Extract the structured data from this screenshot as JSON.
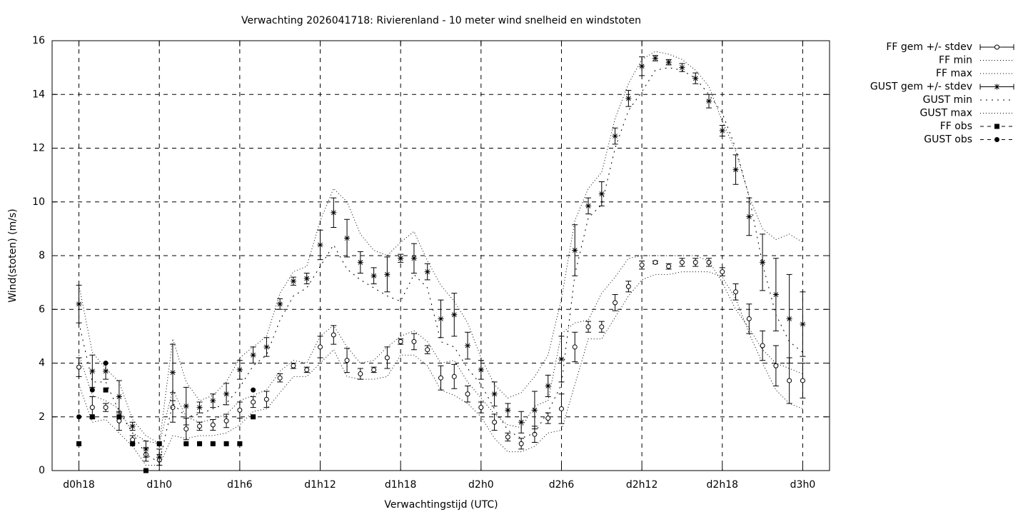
{
  "chart_data": {
    "type": "errorbar-line",
    "title": "Verwachting 2026041718: Rivierenland - 10 meter wind snelheid en windstoten",
    "x_label": "Verwachtingstijd (UTC)",
    "y_label": "Wind(stoten) (m/s)",
    "xlim": [
      16,
      74
    ],
    "ylim": [
      0,
      16
    ],
    "xticks": [
      {
        "value": 18,
        "label": "d0h18"
      },
      {
        "value": 24,
        "label": "d1h0"
      },
      {
        "value": 30,
        "label": "d1h6"
      },
      {
        "value": 36,
        "label": "d1h12"
      },
      {
        "value": 42,
        "label": "d1h18"
      },
      {
        "value": 48,
        "label": "d2h0"
      },
      {
        "value": 54,
        "label": "d2h6"
      },
      {
        "value": 60,
        "label": "d2h12"
      },
      {
        "value": 66,
        "label": "d2h18"
      },
      {
        "value": 72,
        "label": "d3h0"
      }
    ],
    "yticks": [
      0,
      2,
      4,
      6,
      8,
      10,
      12,
      14,
      16
    ],
    "grid": true,
    "legend": "outside-right",
    "x": [
      18,
      19,
      20,
      21,
      22,
      23,
      24,
      25,
      26,
      27,
      28,
      29,
      30,
      31,
      32,
      33,
      34,
      35,
      36,
      37,
      38,
      39,
      40,
      41,
      42,
      43,
      44,
      45,
      46,
      47,
      48,
      49,
      50,
      51,
      52,
      53,
      54,
      55,
      56,
      57,
      58,
      59,
      60,
      61,
      62,
      63,
      64,
      65,
      66,
      67,
      68,
      69,
      70,
      71,
      72
    ],
    "series": [
      {
        "name": "FF gem +/- stdev",
        "color": "#000000",
        "marker": "open-circle",
        "line": "errorbar",
        "values": [
          3.85,
          2.35,
          2.35,
          1.85,
          1.15,
          0.6,
          0.4,
          2.35,
          1.55,
          1.65,
          1.7,
          1.85,
          2.25,
          2.55,
          2.65,
          3.45,
          3.9,
          3.75,
          4.6,
          5.05,
          4.1,
          3.6,
          3.75,
          4.2,
          4.8,
          4.8,
          4.5,
          3.45,
          3.5,
          2.85,
          2.35,
          1.8,
          1.25,
          1.0,
          1.35,
          1.95,
          2.3,
          4.6,
          5.35,
          5.35,
          6.25,
          6.85,
          7.65,
          7.75,
          7.6,
          7.75,
          7.75,
          7.75,
          7.4,
          6.65,
          5.65,
          4.65,
          3.9,
          3.35,
          3.35
        ],
        "errors": [
          0.35,
          0.4,
          0.15,
          0.35,
          0.15,
          0.25,
          0.2,
          0.55,
          0.4,
          0.15,
          0.2,
          0.25,
          0.3,
          0.2,
          0.3,
          0.15,
          0.1,
          0.1,
          0.4,
          0.35,
          0.45,
          0.2,
          0.1,
          0.4,
          0.1,
          0.3,
          0.15,
          0.45,
          0.45,
          0.3,
          0.2,
          0.3,
          0.15,
          0.2,
          0.3,
          0.2,
          0.55,
          0.55,
          0.2,
          0.2,
          0.3,
          0.2,
          0.15,
          0.05,
          0.1,
          0.15,
          0.15,
          0.15,
          0.15,
          0.3,
          0.55,
          0.55,
          0.75,
          0.85,
          0.65
        ]
      },
      {
        "name": "FF min",
        "color": "#000000",
        "line": "dotted",
        "values": [
          3.2,
          1.8,
          1.9,
          1.4,
          0.9,
          0.2,
          0.2,
          1.3,
          1.2,
          1.3,
          1.3,
          1.4,
          1.7,
          2.2,
          2.3,
          2.9,
          3.5,
          3.5,
          4.0,
          4.5,
          3.5,
          3.4,
          3.4,
          3.5,
          4.3,
          4.3,
          3.9,
          3.0,
          2.8,
          2.5,
          2.0,
          1.2,
          0.7,
          0.7,
          0.9,
          1.4,
          1.5,
          3.2,
          4.9,
          4.9,
          5.7,
          6.5,
          7.1,
          7.3,
          7.3,
          7.4,
          7.4,
          7.4,
          7.2,
          6.4,
          5.1,
          4.0,
          3.0,
          2.5,
          2.3
        ]
      },
      {
        "name": "FF max",
        "color": "#000000",
        "line": "dotted",
        "values": [
          4.3,
          2.8,
          2.6,
          2.3,
          1.4,
          1.1,
          1.0,
          3.0,
          2.0,
          1.8,
          1.9,
          2.1,
          2.6,
          2.8,
          3.0,
          3.7,
          4.1,
          4.0,
          5.0,
          5.4,
          4.6,
          4.0,
          4.1,
          4.6,
          5.0,
          5.2,
          4.8,
          4.0,
          4.1,
          3.3,
          2.7,
          2.1,
          1.7,
          1.6,
          2.4,
          2.6,
          5.1,
          5.5,
          5.6,
          6.6,
          7.2,
          7.9,
          8.0,
          8.0,
          8.0,
          8.0,
          8.0,
          7.8,
          7.0,
          6.0,
          5.3,
          4.5,
          4.0,
          3.8,
          3.6
        ]
      },
      {
        "name": "GUST gem +/- stdev",
        "color": "#000000",
        "marker": "star",
        "line": "errorbar",
        "values": [
          6.2,
          3.7,
          3.7,
          2.75,
          1.65,
          0.8,
          0.5,
          3.65,
          2.4,
          2.35,
          2.6,
          2.85,
          3.75,
          4.3,
          4.6,
          6.2,
          7.05,
          7.15,
          8.4,
          9.6,
          8.65,
          7.75,
          7.25,
          7.3,
          7.9,
          7.9,
          7.4,
          5.65,
          5.8,
          4.65,
          3.75,
          2.85,
          2.25,
          1.8,
          2.25,
          3.15,
          4.15,
          8.2,
          9.85,
          10.3,
          12.45,
          13.85,
          15.05,
          15.35,
          15.2,
          15.0,
          14.6,
          13.75,
          12.65,
          11.2,
          9.45,
          7.75,
          6.55,
          5.65,
          5.45
        ],
        "errors": [
          0.7,
          0.6,
          0.3,
          0.6,
          0.15,
          0.3,
          0.3,
          1.05,
          0.7,
          0.2,
          0.25,
          0.4,
          0.35,
          0.3,
          0.35,
          0.2,
          0.15,
          0.2,
          0.55,
          0.55,
          0.7,
          0.4,
          0.3,
          0.65,
          0.15,
          0.55,
          0.3,
          0.7,
          0.8,
          0.5,
          0.35,
          0.45,
          0.25,
          0.4,
          0.7,
          0.4,
          0.85,
          0.95,
          0.3,
          0.45,
          0.3,
          0.3,
          0.35,
          0.1,
          0.1,
          0.15,
          0.2,
          0.25,
          0.2,
          0.55,
          0.7,
          1.05,
          1.35,
          1.65,
          1.2
        ]
      },
      {
        "name": "GUST min",
        "color": "#000000",
        "line": "dotted-coarse",
        "values": [
          5.5,
          3.3,
          3.3,
          2.2,
          1.4,
          0.6,
          0.3,
          2.5,
          2.0,
          2.1,
          2.3,
          2.5,
          3.1,
          3.9,
          4.3,
          5.6,
          6.5,
          6.8,
          7.6,
          8.4,
          7.5,
          7.1,
          6.8,
          6.5,
          6.3,
          7.3,
          6.8,
          4.8,
          4.6,
          3.8,
          3.2,
          2.3,
          1.5,
          1.2,
          1.4,
          2.2,
          3.2,
          7.3,
          9.4,
          9.9,
          12.0,
          13.4,
          14.1,
          14.9,
          15.0,
          14.9,
          14.6,
          14.0,
          13.3,
          12.0,
          10.2,
          7.7,
          5.8,
          4.8,
          4.4
        ]
      },
      {
        "name": "GUST max",
        "color": "#000000",
        "line": "dotted",
        "values": [
          6.9,
          4.4,
          3.8,
          3.3,
          1.9,
          1.3,
          1.0,
          4.9,
          3.3,
          2.6,
          2.8,
          3.3,
          4.2,
          4.6,
          5.0,
          6.6,
          7.4,
          7.6,
          9.3,
          10.5,
          10.0,
          8.8,
          8.2,
          8.0,
          8.5,
          8.9,
          7.8,
          6.9,
          6.3,
          5.5,
          4.2,
          3.2,
          2.7,
          2.9,
          3.5,
          4.3,
          6.4,
          9.3,
          10.5,
          11.1,
          13.1,
          14.4,
          15.3,
          15.6,
          15.5,
          15.3,
          14.9,
          14.3,
          13.0,
          11.9,
          10.2,
          9.0,
          8.6,
          8.8,
          8.5
        ]
      },
      {
        "name": "FF obs",
        "color": "#000000",
        "marker": "filled-square",
        "line": "points",
        "x": [
          18,
          19,
          20,
          21,
          22,
          23,
          24,
          25,
          26,
          27,
          28,
          29,
          30,
          31
        ],
        "values": [
          1,
          2,
          3,
          2,
          1,
          0,
          1,
          null,
          1,
          1,
          1,
          1,
          1,
          2
        ]
      },
      {
        "name": "GUST obs",
        "color": "#000000",
        "marker": "filled-circle",
        "line": "points",
        "x": [
          18,
          19,
          20,
          21,
          22,
          23,
          24,
          25,
          26,
          27,
          28,
          29,
          30,
          31
        ],
        "values": [
          2,
          3,
          4,
          2,
          1,
          null,
          1,
          null,
          1,
          1,
          1,
          1,
          1,
          3
        ]
      }
    ]
  }
}
